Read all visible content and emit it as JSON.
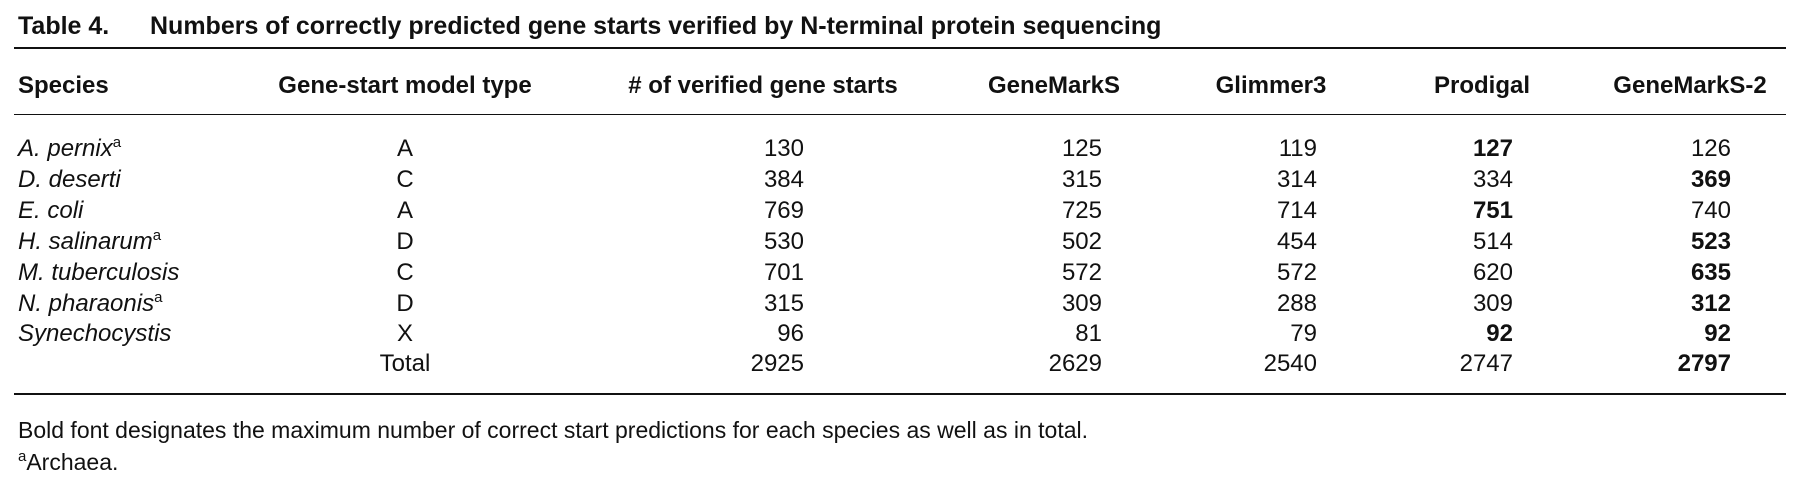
{
  "title": {
    "label": "Table 4.",
    "text": "Numbers of correctly predicted gene starts verified by N-terminal protein sequencing"
  },
  "table": {
    "header": [
      "Species",
      "Gene-start model type",
      "# of verified gene starts",
      "GeneMarkS",
      "Glimmer3",
      "Prodigal",
      "GeneMarkS-2"
    ],
    "rows": [
      {
        "species": "A. pernix",
        "note": "a",
        "model": "A",
        "values": [
          130,
          125,
          119,
          127,
          126
        ],
        "bold": [
          3
        ]
      },
      {
        "species": "D. deserti",
        "model": "C",
        "values": [
          384,
          315,
          314,
          334,
          369
        ],
        "bold": [
          4
        ]
      },
      {
        "species": "E. coli",
        "model": "A",
        "values": [
          769,
          725,
          714,
          751,
          740
        ],
        "bold": [
          3
        ]
      },
      {
        "species": "H. salinarum",
        "note": "a",
        "model": "D",
        "values": [
          530,
          502,
          454,
          514,
          523
        ],
        "bold": [
          4
        ]
      },
      {
        "species": "M. tuberculosis",
        "model": "C",
        "values": [
          701,
          572,
          572,
          620,
          635
        ],
        "bold": [
          4
        ]
      },
      {
        "species": "N. pharaonis",
        "note": "a",
        "model": "D",
        "values": [
          315,
          309,
          288,
          309,
          312
        ],
        "bold": [
          4
        ]
      },
      {
        "species": "Synechocystis",
        "model": "X",
        "values": [
          96,
          81,
          79,
          92,
          92
        ],
        "bold": [
          3,
          4
        ]
      }
    ],
    "total": {
      "label": "Total",
      "values": [
        2925,
        2629,
        2540,
        2747,
        2797
      ],
      "bold": [
        4
      ]
    }
  },
  "footnotes": {
    "text": "Bold font designates the maximum number of correct start predictions for each species as well as in total.",
    "mark": "a",
    "note": "Archaea."
  }
}
